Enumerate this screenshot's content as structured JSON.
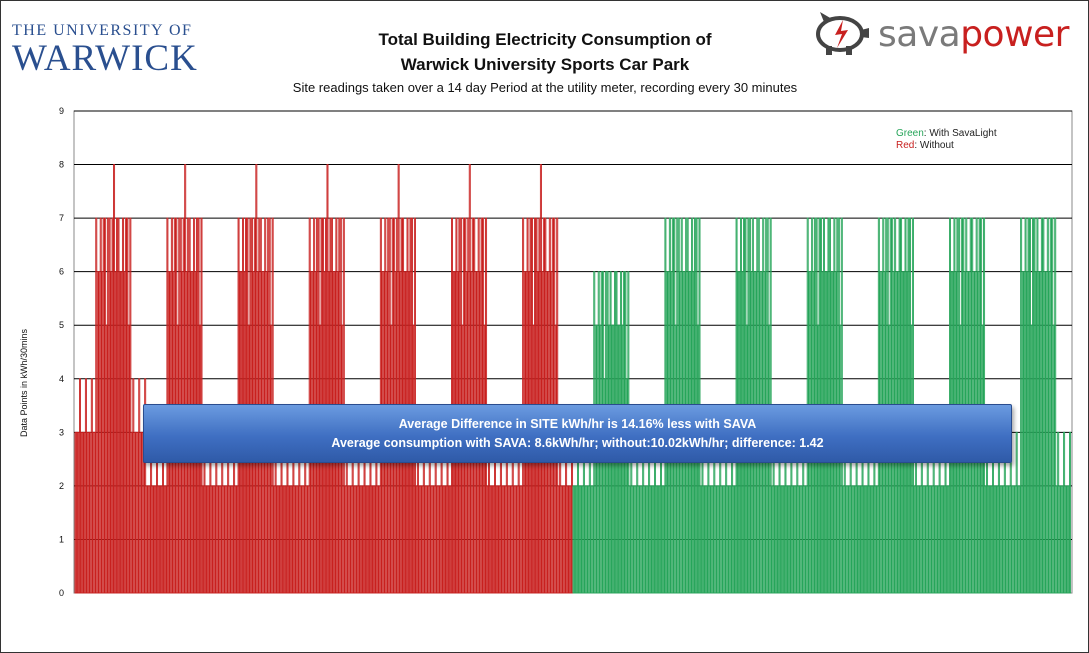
{
  "logos": {
    "warwick_line1": "THE UNIVERSITY OF",
    "warwick_line2": "WARWICK",
    "sava_word1": "sava",
    "sava_word2": "power"
  },
  "colors": {
    "without": "#c8201f",
    "with": "#27a55a",
    "callout": "#3f6fc2",
    "warwick": "#2a4f8f"
  },
  "chart_data": {
    "type": "bar",
    "title": "Total Building Electricity Consumption  of",
    "title_line2": "Warwick University Sports Car Park",
    "subtitle": "Site readings taken over a 14 day Period at the utility meter, recording every 30 minutes",
    "ylabel": "Data Points in kWh/30mins",
    "xlabel": "",
    "ylim": [
      0,
      9
    ],
    "yticks": [
      "0",
      "1",
      "2",
      "3",
      "4",
      "5",
      "6",
      "7",
      "8",
      "9"
    ],
    "grid": true,
    "legend_position": "top-right",
    "legend": [
      {
        "label": "Green",
        "text": ": With SavaLight"
      },
      {
        "label": "Red",
        "text": ": Without"
      }
    ],
    "series": [
      {
        "name": "Without",
        "color": "#c8201f",
        "days": 7,
        "readings_per_day": 48,
        "day_peaks": [
          7,
          7,
          7,
          7,
          7,
          7,
          7
        ],
        "peak_spikes": [
          8,
          8,
          8,
          8,
          8,
          8,
          8
        ],
        "night_levels": [
          3,
          2,
          2,
          2,
          2,
          2,
          2
        ]
      },
      {
        "name": "With SavaLight",
        "color": "#27a55a",
        "days": 7,
        "readings_per_day": 48,
        "day_peaks": [
          6,
          7,
          7,
          7,
          7,
          7,
          7
        ],
        "night_levels": [
          2,
          2,
          2,
          2,
          2,
          2,
          2
        ]
      }
    ],
    "annotations": [
      "Average Difference in  SITE kWh/hr is 14.16%  less with SAVA",
      "Average consumption with SAVA: 8.6kWh/hr; without:10.02kWh/hr; difference: 1.42"
    ]
  }
}
